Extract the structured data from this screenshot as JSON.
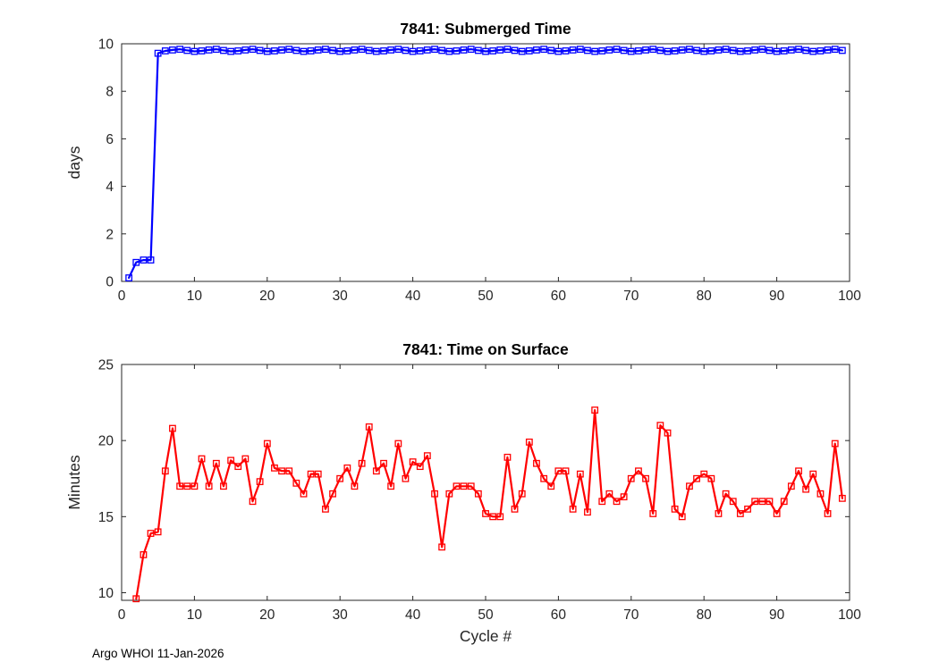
{
  "figure": {
    "footer": "Argo WHOI 11-Jan-2026"
  },
  "colors": {
    "axis": "#262626",
    "title": "#000000",
    "series_top": "#0000ff",
    "series_bottom": "#ff0000",
    "background": "#ffffff"
  },
  "chart_data": [
    {
      "type": "line",
      "name": "submerged-time-chart",
      "title": "7841: Submerged Time",
      "xlabel": "",
      "ylabel": "days",
      "xlim": [
        0,
        100
      ],
      "ylim": [
        0,
        10
      ],
      "xticks": [
        0,
        10,
        20,
        30,
        40,
        50,
        60,
        70,
        80,
        90,
        100
      ],
      "yticks": [
        0,
        2,
        4,
        6,
        8,
        10
      ],
      "grid": false,
      "legend": null,
      "color": "#0000ff",
      "marker": "square",
      "x": [
        1,
        2,
        3,
        4,
        5,
        6,
        7,
        8,
        9,
        10,
        11,
        12,
        13,
        14,
        15,
        16,
        17,
        18,
        19,
        20,
        21,
        22,
        23,
        24,
        25,
        26,
        27,
        28,
        29,
        30,
        31,
        32,
        33,
        34,
        35,
        36,
        37,
        38,
        39,
        40,
        41,
        42,
        43,
        44,
        45,
        46,
        47,
        48,
        49,
        50,
        51,
        52,
        53,
        54,
        55,
        56,
        57,
        58,
        59,
        60,
        61,
        62,
        63,
        64,
        65,
        66,
        67,
        68,
        69,
        70,
        71,
        72,
        73,
        74,
        75,
        76,
        77,
        78,
        79,
        80,
        81,
        82,
        83,
        84,
        85,
        86,
        87,
        88,
        89,
        90,
        91,
        92,
        93,
        94,
        95,
        96,
        97,
        98,
        99
      ],
      "y": [
        0.15,
        0.8,
        0.9,
        0.9,
        9.6,
        9.7,
        9.74,
        9.77,
        9.72,
        9.68,
        9.7,
        9.74,
        9.77,
        9.72,
        9.68,
        9.7,
        9.74,
        9.77,
        9.72,
        9.68,
        9.7,
        9.74,
        9.77,
        9.72,
        9.68,
        9.7,
        9.74,
        9.77,
        9.72,
        9.68,
        9.7,
        9.74,
        9.77,
        9.72,
        9.68,
        9.7,
        9.74,
        9.77,
        9.72,
        9.68,
        9.7,
        9.74,
        9.77,
        9.72,
        9.68,
        9.7,
        9.74,
        9.77,
        9.72,
        9.68,
        9.7,
        9.74,
        9.77,
        9.72,
        9.68,
        9.7,
        9.74,
        9.77,
        9.72,
        9.68,
        9.7,
        9.74,
        9.77,
        9.72,
        9.68,
        9.7,
        9.74,
        9.77,
        9.72,
        9.68,
        9.7,
        9.74,
        9.77,
        9.72,
        9.68,
        9.7,
        9.74,
        9.77,
        9.72,
        9.68,
        9.7,
        9.74,
        9.77,
        9.72,
        9.68,
        9.7,
        9.74,
        9.77,
        9.72,
        9.68,
        9.7,
        9.74,
        9.77,
        9.72,
        9.68,
        9.7,
        9.74,
        9.77,
        9.72
      ]
    },
    {
      "type": "line",
      "name": "time-on-surface-chart",
      "title": "7841: Time on Surface",
      "xlabel": "Cycle #",
      "ylabel": "Minutes",
      "xlim": [
        0,
        100
      ],
      "ylim": [
        9.5,
        25
      ],
      "xticks": [
        0,
        10,
        20,
        30,
        40,
        50,
        60,
        70,
        80,
        90,
        100
      ],
      "yticks": [
        10,
        15,
        20,
        25
      ],
      "grid": false,
      "legend": null,
      "color": "#ff0000",
      "marker": "square",
      "x": [
        2,
        3,
        4,
        5,
        6,
        7,
        8,
        9,
        10,
        11,
        12,
        13,
        14,
        15,
        16,
        17,
        18,
        19,
        20,
        21,
        22,
        23,
        24,
        25,
        26,
        27,
        28,
        29,
        30,
        31,
        32,
        33,
        34,
        35,
        36,
        37,
        38,
        39,
        40,
        41,
        42,
        43,
        44,
        45,
        46,
        47,
        48,
        49,
        50,
        51,
        52,
        53,
        54,
        55,
        56,
        57,
        58,
        59,
        60,
        61,
        62,
        63,
        64,
        65,
        66,
        67,
        68,
        69,
        70,
        71,
        72,
        73,
        74,
        75,
        76,
        77,
        78,
        79,
        80,
        81,
        82,
        83,
        84,
        85,
        86,
        87,
        88,
        89,
        90,
        91,
        92,
        93,
        94,
        95,
        96,
        97,
        98,
        99
      ],
      "y": [
        9.6,
        12.5,
        13.9,
        14.0,
        18.0,
        20.8,
        17.0,
        17.0,
        17.0,
        18.8,
        17.0,
        18.5,
        17.0,
        18.7,
        18.3,
        18.8,
        16.0,
        17.3,
        19.8,
        18.2,
        18.0,
        18.0,
        17.2,
        16.5,
        17.8,
        17.8,
        15.5,
        16.5,
        17.5,
        18.2,
        17.0,
        18.5,
        20.9,
        18.0,
        18.5,
        17.0,
        19.8,
        17.5,
        18.6,
        18.3,
        19.0,
        16.5,
        13.0,
        16.5,
        17.0,
        17.0,
        17.0,
        16.5,
        15.2,
        15.0,
        15.0,
        18.9,
        15.5,
        16.5,
        19.9,
        18.5,
        17.5,
        17.0,
        18.0,
        18.0,
        15.5,
        17.8,
        15.3,
        22.0,
        16.0,
        16.5,
        16.0,
        16.3,
        17.5,
        18.0,
        17.5,
        15.2,
        21.0,
        20.5,
        15.5,
        15.0,
        17.0,
        17.5,
        17.8,
        17.5,
        15.2,
        16.5,
        16.0,
        15.2,
        15.5,
        16.0,
        16.0,
        16.0,
        15.2,
        16.0,
        17.0,
        18.0,
        16.8,
        17.8,
        16.5,
        15.2,
        19.8,
        16.2
      ]
    }
  ]
}
